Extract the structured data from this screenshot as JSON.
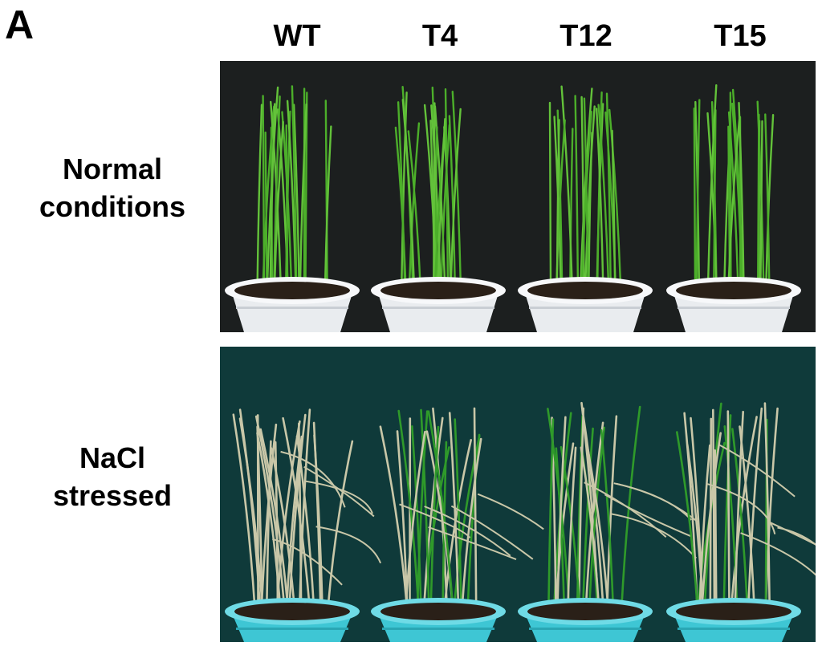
{
  "figure": {
    "panel_letter": "A",
    "columns": [
      "WT",
      "T4",
      "T12",
      "T15"
    ],
    "rows": [
      {
        "line1": "Normal",
        "line2": "conditions"
      },
      {
        "line1": "NaCl",
        "line2": "stressed"
      }
    ],
    "colors": {
      "normal_background": "#1c1f1f",
      "stressed_background": "#0f3a3a",
      "healthy_leaf": "#4caf2a",
      "dried_leaf": "#c9c7a8",
      "white_pot": "#e9ecef",
      "cyan_pot": "#3ec6d4"
    }
  }
}
